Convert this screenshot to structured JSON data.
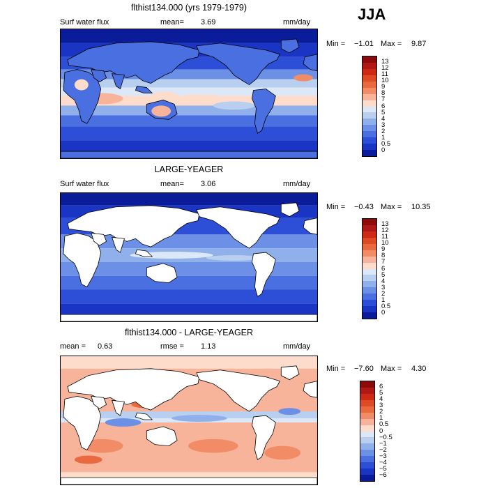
{
  "season": "JJA",
  "units_label": "mm/day",
  "panels": [
    {
      "title": "flthist134.000 (yrs 1979-1979)",
      "left_label": "Surf water flux",
      "stat1_label": "mean=",
      "stat1_value": "3.69",
      "units": "mm/day",
      "min_label": "Min =",
      "min_value": "−1.01",
      "max_label": "Max =",
      "max_value": "9.87"
    },
    {
      "title": "LARGE-YEAGER",
      "left_label": "Surf water flux",
      "stat1_label": "mean=",
      "stat1_value": "3.06",
      "units": "mm/day",
      "min_label": "Min =",
      "min_value": "−0.43",
      "max_label": "Max =",
      "max_value": "10.35"
    },
    {
      "title": "flthist134.000 - LARGE-YEAGER",
      "left_label": "mean =",
      "left_value": "0.63",
      "stat1_label": "rmse =",
      "stat1_value": "1.13",
      "units": "mm/day",
      "min_label": "Min =",
      "min_value": "−7.60",
      "max_label": "Max =",
      "max_value": "4.30"
    }
  ],
  "chart_data": [
    {
      "type": "heatmap",
      "title": "flthist134.000 (yrs 1979-1979)",
      "variable": "Surf water flux",
      "units": "mm/day",
      "mean": 3.69,
      "min": -1.01,
      "max": 9.87,
      "colorbar": {
        "levels": [
          "13",
          "12",
          "11",
          "10",
          "9",
          "8",
          "7",
          "6",
          "5",
          "4",
          "3",
          "2",
          "1",
          "0.5",
          "0"
        ],
        "colors": [
          "#8c0a0a",
          "#b01818",
          "#cc2a14",
          "#dd4a24",
          "#ea6a40",
          "#f28c66",
          "#f8b49a",
          "#fddccb",
          "#dce8f7",
          "#b9cff0",
          "#8fb0ea",
          "#6c90e6",
          "#4a6fe0",
          "#2d4fd8",
          "#1a34c4",
          "#0a1c9a"
        ]
      }
    },
    {
      "type": "heatmap",
      "title": "LARGE-YEAGER",
      "variable": "Surf water flux",
      "units": "mm/day",
      "mean": 3.06,
      "min": -0.43,
      "max": 10.35,
      "colorbar": {
        "levels": [
          "13",
          "12",
          "11",
          "10",
          "9",
          "8",
          "7",
          "6",
          "5",
          "4",
          "3",
          "2",
          "1",
          "0.5",
          "0"
        ],
        "colors": [
          "#8c0a0a",
          "#b01818",
          "#cc2a14",
          "#dd4a24",
          "#ea6a40",
          "#f28c66",
          "#f8b49a",
          "#fddccb",
          "#dce8f7",
          "#b9cff0",
          "#8fb0ea",
          "#6c90e6",
          "#4a6fe0",
          "#2d4fd8",
          "#1a34c4",
          "#0a1c9a"
        ]
      }
    },
    {
      "type": "heatmap",
      "title": "flthist134.000 - LARGE-YEAGER",
      "units": "mm/day",
      "mean": 0.63,
      "rmse": 1.13,
      "min": -7.6,
      "max": 4.3,
      "colorbar": {
        "levels": [
          "6",
          "5",
          "4",
          "3",
          "2",
          "1",
          "0.5",
          "0",
          "−0.5",
          "−1",
          "−2",
          "−3",
          "−4",
          "−5",
          "−6"
        ],
        "colors": [
          "#8c0a0a",
          "#b01818",
          "#cc2a14",
          "#dd4a24",
          "#ea6a40",
          "#f28c66",
          "#f8b49a",
          "#fddccb",
          "#dce8f7",
          "#b9cff0",
          "#8fb0ea",
          "#6c90e6",
          "#4a6fe0",
          "#2d4fd8",
          "#1a34c4",
          "#0a1c9a"
        ]
      }
    }
  ]
}
